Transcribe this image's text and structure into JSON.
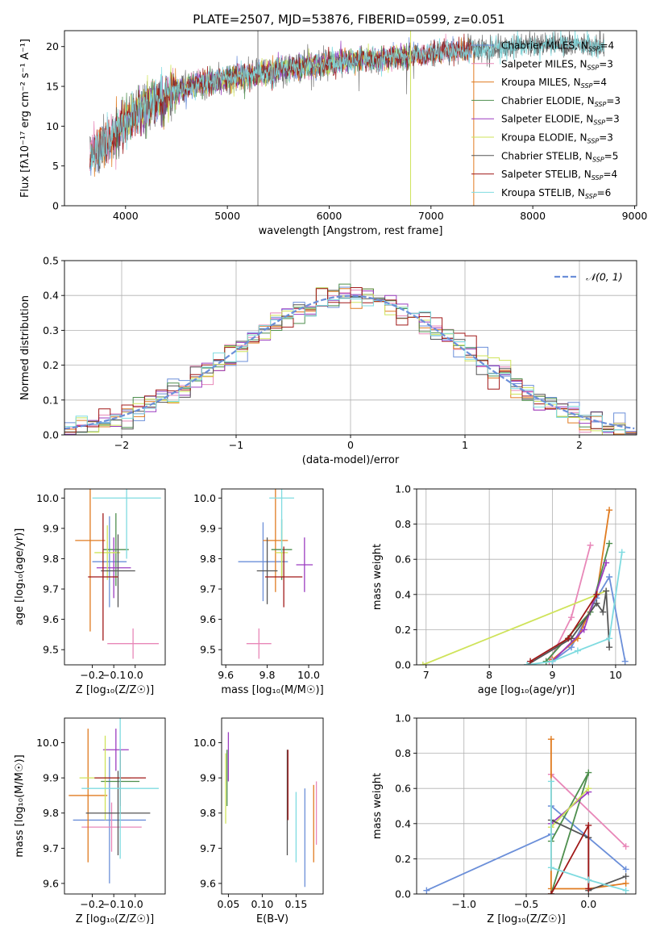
{
  "title": "PLATE=2507, MJD=53876, FIBERID=0599, z=0.051",
  "colors": {
    "Chabrier MILES": "#6b8fd9",
    "Salpeter MILES": "#e887b8",
    "Kroupa MILES": "#e07b20",
    "Chabrier ELODIE": "#4e8f4e",
    "Salpeter ELODIE": "#9b3cc0",
    "Kroupa ELODIE": "#cfe35a",
    "Chabrier STELIB": "#555555",
    "Salpeter STELIB": "#a01818",
    "Kroupa STELIB": "#7fdbe0",
    "gauss": "#6b8fd9"
  },
  "models": [
    "Chabrier MILES",
    "Salpeter MILES",
    "Kroupa MILES",
    "Chabrier ELODIE",
    "Salpeter ELODIE",
    "Kroupa ELODIE",
    "Chabrier STELIB",
    "Salpeter STELIB",
    "Kroupa STELIB"
  ],
  "chart_data": [
    {
      "id": "spectrum",
      "type": "line",
      "xlabel": "wavelength [Angstrom, rest frame]",
      "ylabel": "Flux [fλ10⁻¹⁷ erg cm⁻² s⁻¹ A⁻¹]",
      "xlim": [
        3400,
        9020
      ],
      "ylim": [
        0,
        22
      ],
      "xticks": [
        4000,
        5000,
        6000,
        7000,
        8000,
        9000
      ],
      "yticks": [
        0,
        5,
        10,
        15,
        20
      ],
      "legend_position": "top-right",
      "legend": [
        {
          "model": "Chabrier MILES",
          "label": "Chabrier MILES, N",
          "sub": "SSP",
          "tail": "=4"
        },
        {
          "model": "Salpeter MILES",
          "label": "Salpeter MILES, N",
          "sub": "SSP",
          "tail": "=3"
        },
        {
          "model": "Kroupa MILES",
          "label": "Kroupa MILES, N",
          "sub": "SSP",
          "tail": "=4"
        },
        {
          "model": "Chabrier ELODIE",
          "label": "Chabrier ELODIE, N",
          "sub": "SSP",
          "tail": "=3"
        },
        {
          "model": "Salpeter ELODIE",
          "label": "Salpeter ELODIE, N",
          "sub": "SSP",
          "tail": "=3"
        },
        {
          "model": "Kroupa ELODIE",
          "label": "Kroupa ELODIE, N",
          "sub": "SSP",
          "tail": "=3"
        },
        {
          "model": "Chabrier STELIB",
          "label": "Chabrier STELIB, N",
          "sub": "SSP",
          "tail": "=5"
        },
        {
          "model": "Salpeter STELIB",
          "label": "Salpeter STELIB, N",
          "sub": "SSP",
          "tail": "=4"
        },
        {
          "model": "Kroupa STELIB",
          "label": "Kroupa STELIB, N",
          "sub": "SSP",
          "tail": "=6"
        }
      ],
      "continuum": [
        [
          3650,
          6.5
        ],
        [
          3800,
          7.5
        ],
        [
          3950,
          10
        ],
        [
          4100,
          11.8
        ],
        [
          4300,
          13.2
        ],
        [
          4500,
          14.5
        ],
        [
          4800,
          15.5
        ],
        [
          5100,
          16.2
        ],
        [
          5400,
          16.8
        ],
        [
          5800,
          17.6
        ],
        [
          6200,
          18.2
        ],
        [
          6600,
          18.6
        ],
        [
          7000,
          19.2
        ],
        [
          7400,
          19.6
        ],
        [
          7800,
          20
        ],
        [
          8200,
          20.4
        ],
        [
          8700,
          20
        ]
      ],
      "model_ranges": [
        [
          3650,
          7400
        ],
        [
          3650,
          7400
        ],
        [
          3650,
          7400
        ],
        [
          3900,
          6800
        ],
        [
          3900,
          6800
        ],
        [
          3900,
          6800
        ],
        [
          3650,
          8700
        ],
        [
          3650,
          7400
        ],
        [
          3650,
          8700
        ]
      ],
      "spikes": [
        {
          "x": 5300,
          "y": [
            0,
            22
          ]
        },
        {
          "x": 6800,
          "y": [
            0,
            22
          ]
        }
      ]
    },
    {
      "id": "residuals",
      "type": "histogram",
      "xlabel": "(data-model)/error",
      "ylabel": "Normed distribution",
      "xlim": [
        -2.5,
        2.5
      ],
      "ylim": [
        0,
        0.5
      ],
      "xticks": [
        -2,
        -1,
        0,
        1,
        2
      ],
      "yticks": [
        0,
        0.1,
        0.2,
        0.3,
        0.4,
        0.5
      ],
      "grid": true,
      "bin_width": 0.1,
      "legend_position": "top-right",
      "gauss_label": "𝒩(0, 1)"
    },
    {
      "id": "age-vs-Z",
      "type": "errorbar",
      "xlabel": "Z [log₁₀(Z/Z☉)]",
      "ylabel": "age  [log₁₀(age/yr)]",
      "xlim": [
        -0.33,
        0.14
      ],
      "ylim": [
        9.45,
        10.03
      ],
      "xticks": [
        -0.2,
        -0.1,
        0.0
      ],
      "yticks": [
        9.5,
        9.6,
        9.7,
        9.8,
        9.9,
        10.0
      ],
      "points": [
        {
          "model": "Chabrier MILES",
          "x": -0.12,
          "xerr": 0.08,
          "y": 9.79,
          "yerr": 0.15
        },
        {
          "model": "Salpeter MILES",
          "x": -0.01,
          "xerr": 0.12,
          "y": 9.52,
          "yerr": 0.05
        },
        {
          "model": "Kroupa MILES",
          "x": -0.21,
          "xerr": 0.07,
          "y": 9.86,
          "yerr": 0.3
        },
        {
          "model": "Chabrier ELODIE",
          "x": -0.09,
          "xerr": 0.06,
          "y": 9.83,
          "yerr": 0.12
        },
        {
          "model": "Salpeter ELODIE",
          "x": -0.1,
          "xerr": 0.08,
          "y": 9.77,
          "yerr": 0.1
        },
        {
          "model": "Kroupa ELODIE",
          "x": -0.13,
          "xerr": 0.06,
          "y": 9.82,
          "yerr": 0.09
        },
        {
          "model": "Chabrier STELIB",
          "x": -0.08,
          "xerr": 0.08,
          "y": 9.76,
          "yerr": 0.12
        },
        {
          "model": "Salpeter STELIB",
          "x": -0.15,
          "xerr": 0.07,
          "y": 9.74,
          "yerr": 0.21
        },
        {
          "model": "Kroupa STELIB",
          "x": -0.04,
          "xerr": 0.16,
          "y": 10.0,
          "yerr": 0.2
        }
      ]
    },
    {
      "id": "age-vs-mass",
      "type": "errorbar",
      "xlabel": "mass [log₁₀(M/M☉)]",
      "ylabel": "",
      "xlim": [
        9.58,
        10.07
      ],
      "ylim": [
        9.45,
        10.03
      ],
      "xticks": [
        9.6,
        9.8,
        10.0
      ],
      "yticks": [
        9.5,
        9.6,
        9.7,
        9.8,
        9.9,
        10.0
      ],
      "points": [
        {
          "model": "Chabrier MILES",
          "x": 9.78,
          "xerr": 0.12,
          "y": 9.79,
          "yerr": 0.13
        },
        {
          "model": "Salpeter MILES",
          "x": 9.76,
          "xerr": 0.06,
          "y": 9.52,
          "yerr": 0.05
        },
        {
          "model": "Kroupa MILES",
          "x": 9.84,
          "xerr": 0.06,
          "y": 9.86,
          "yerr": 0.17
        },
        {
          "model": "Chabrier ELODIE",
          "x": 9.87,
          "xerr": 0.05,
          "y": 9.83,
          "yerr": 0.1
        },
        {
          "model": "Salpeter ELODIE",
          "x": 9.98,
          "xerr": 0.04,
          "y": 9.78,
          "yerr": 0.09
        },
        {
          "model": "Kroupa ELODIE",
          "x": 9.87,
          "xerr": 0.03,
          "y": 9.82,
          "yerr": 0.08
        },
        {
          "model": "Chabrier STELIB",
          "x": 9.8,
          "xerr": 0.05,
          "y": 9.76,
          "yerr": 0.11
        },
        {
          "model": "Salpeter STELIB",
          "x": 9.88,
          "xerr": 0.09,
          "y": 9.74,
          "yerr": 0.1
        },
        {
          "model": "Kroupa STELIB",
          "x": 9.87,
          "xerr": 0.06,
          "y": 10.0,
          "yerr": 0.18
        }
      ]
    },
    {
      "id": "weight-vs-age",
      "type": "line",
      "xlabel": "age  [log₁₀(age/yr)]",
      "ylabel": "mass weight",
      "xlim": [
        6.85,
        10.32
      ],
      "ylim": [
        0,
        1
      ],
      "xticks": [
        7,
        8,
        9,
        10
      ],
      "yticks": [
        0,
        0.2,
        0.4,
        0.6,
        0.8,
        1.0
      ],
      "grid": true,
      "series": [
        {
          "model": "Chabrier MILES",
          "x": [
            9.0,
            9.3,
            9.7,
            9.9,
            10.15
          ],
          "y": [
            0.02,
            0.1,
            0.38,
            0.5,
            0.02
          ]
        },
        {
          "model": "Salpeter MILES",
          "x": [
            8.95,
            9.3,
            9.6
          ],
          "y": [
            0.02,
            0.27,
            0.68
          ]
        },
        {
          "model": "Kroupa MILES",
          "x": [
            9.0,
            9.4,
            9.7,
            9.9
          ],
          "y": [
            0.03,
            0.15,
            0.4,
            0.88
          ]
        },
        {
          "model": "Chabrier ELODIE",
          "x": [
            8.9,
            9.6,
            9.9
          ],
          "y": [
            0.02,
            0.3,
            0.69
          ]
        },
        {
          "model": "Salpeter ELODIE",
          "x": [
            9.0,
            9.5,
            9.85
          ],
          "y": [
            0.02,
            0.2,
            0.58
          ]
        },
        {
          "model": "Kroupa ELODIE",
          "x": [
            6.95,
            9.85
          ],
          "y": [
            0.0,
            0.42
          ]
        },
        {
          "model": "Chabrier STELIB",
          "x": [
            8.6,
            9.3,
            9.7,
            9.8,
            9.85,
            9.9
          ],
          "y": [
            0.0,
            0.15,
            0.35,
            0.3,
            0.42,
            0.1
          ]
        },
        {
          "model": "Salpeter STELIB",
          "x": [
            8.65,
            9.25,
            9.7
          ],
          "y": [
            0.02,
            0.15,
            0.4
          ]
        },
        {
          "model": "Kroupa STELIB",
          "x": [
            8.6,
            9.0,
            9.4,
            9.9,
            10.1
          ],
          "y": [
            0.0,
            0.02,
            0.08,
            0.15,
            0.64
          ]
        }
      ]
    },
    {
      "id": "mass-vs-Z",
      "type": "errorbar",
      "xlabel": "Z [log₁₀(Z/Z☉)]",
      "ylabel": "mass [log₁₀(M/M☉)]",
      "xlim": [
        -0.33,
        0.14
      ],
      "ylim": [
        9.57,
        10.07
      ],
      "xticks": [
        -0.2,
        -0.1,
        0.0
      ],
      "yticks": [
        9.6,
        9.7,
        9.8,
        9.9,
        10.0
      ],
      "points": [
        {
          "model": "Chabrier MILES",
          "x": -0.12,
          "xerr": 0.17,
          "y": 9.78,
          "yerr": 0.18
        },
        {
          "model": "Salpeter MILES",
          "x": -0.11,
          "xerr": 0.14,
          "y": 9.76,
          "yerr": 0.07
        },
        {
          "model": "Kroupa MILES",
          "x": -0.22,
          "xerr": 0.09,
          "y": 9.85,
          "yerr": 0.19
        },
        {
          "model": "Chabrier ELODIE",
          "x": -0.07,
          "xerr": 0.09,
          "y": 9.89,
          "yerr": 0.09
        },
        {
          "model": "Salpeter ELODIE",
          "x": -0.09,
          "xerr": 0.06,
          "y": 9.98,
          "yerr": 0.06
        },
        {
          "model": "Kroupa ELODIE",
          "x": -0.14,
          "xerr": 0.12,
          "y": 9.9,
          "yerr": 0.12
        },
        {
          "model": "Chabrier STELIB",
          "x": -0.08,
          "xerr": 0.15,
          "y": 9.8,
          "yerr": 0.12
        },
        {
          "model": "Salpeter STELIB",
          "x": -0.07,
          "xerr": 0.12,
          "y": 9.9,
          "yerr": 0.08
        },
        {
          "model": "Kroupa STELIB",
          "x": -0.07,
          "xerr": 0.18,
          "y": 9.87,
          "yerr": 0.2
        }
      ]
    },
    {
      "id": "mass-vs-ebv",
      "type": "errorbar",
      "xlabel": "E(B-V)",
      "ylabel": "",
      "xlim": [
        0.04,
        0.19
      ],
      "ylim": [
        9.57,
        10.07
      ],
      "xticks": [
        0.05,
        0.1,
        0.15
      ],
      "yticks": [
        9.6,
        9.7,
        9.8,
        9.9,
        10.0
      ],
      "points": [
        {
          "model": "Chabrier MILES",
          "x": 0.163,
          "xerr": 0,
          "y": 9.73,
          "yerr": 0.14
        },
        {
          "model": "Salpeter MILES",
          "x": 0.18,
          "xerr": 0,
          "y": 9.8,
          "yerr": 0.09
        },
        {
          "model": "Kroupa MILES",
          "x": 0.176,
          "xerr": 0,
          "y": 9.77,
          "yerr": 0.11
        },
        {
          "model": "Chabrier ELODIE",
          "x": 0.048,
          "xerr": 0,
          "y": 9.9,
          "yerr": 0.08
        },
        {
          "model": "Salpeter ELODIE",
          "x": 0.05,
          "xerr": 0,
          "y": 9.96,
          "yerr": 0.07
        },
        {
          "model": "Kroupa ELODIE",
          "x": 0.046,
          "xerr": 0,
          "y": 9.87,
          "yerr": 0.1
        },
        {
          "model": "Chabrier STELIB",
          "x": 0.137,
          "xerr": 0,
          "y": 9.83,
          "yerr": 0.15
        },
        {
          "model": "Salpeter STELIB",
          "x": 0.138,
          "xerr": 0,
          "y": 9.88,
          "yerr": 0.1
        },
        {
          "model": "Kroupa STELIB",
          "x": 0.15,
          "xerr": 0,
          "y": 9.76,
          "yerr": 0.1
        }
      ]
    },
    {
      "id": "weight-vs-Z",
      "type": "line",
      "xlabel": "Z [log₁₀(Z/Z☉)]",
      "ylabel": "mass weight",
      "xlim": [
        -1.38,
        0.38
      ],
      "ylim": [
        0,
        1
      ],
      "xticks": [
        -1.0,
        -0.5,
        0.0
      ],
      "yticks": [
        0,
        0.2,
        0.4,
        0.6,
        0.8,
        1.0
      ],
      "grid": true,
      "series": [
        {
          "model": "Chabrier MILES",
          "x": [
            -1.3,
            -0.3,
            -0.3,
            0.3
          ],
          "y": [
            0.02,
            0.34,
            0.5,
            0.14
          ]
        },
        {
          "model": "Salpeter MILES",
          "x": [
            -0.3,
            0.3
          ],
          "y": [
            0.68,
            0.27
          ]
        },
        {
          "model": "Kroupa MILES",
          "x": [
            -0.3,
            -0.3,
            0.0,
            0.3
          ],
          "y": [
            0.88,
            0.03,
            0.03,
            0.06
          ]
        },
        {
          "model": "Chabrier ELODIE",
          "x": [
            -0.3,
            0.0,
            -0.3
          ],
          "y": [
            0.0,
            0.69,
            0.3
          ]
        },
        {
          "model": "Salpeter ELODIE",
          "x": [
            -0.3,
            0.0
          ],
          "y": [
            0.4,
            0.58
          ]
        },
        {
          "model": "Kroupa ELODIE",
          "x": [
            -0.3,
            0.0
          ],
          "y": [
            0.38,
            0.6
          ]
        },
        {
          "model": "Chabrier STELIB",
          "x": [
            -0.3,
            0.0,
            0.0,
            0.3
          ],
          "y": [
            0.42,
            0.32,
            0.02,
            0.1
          ]
        },
        {
          "model": "Salpeter STELIB",
          "x": [
            -0.3,
            0.0,
            0.0
          ],
          "y": [
            0.0,
            0.39,
            0.03
          ]
        },
        {
          "model": "Kroupa STELIB",
          "x": [
            -0.3,
            -0.3,
            0.0,
            0.3
          ],
          "y": [
            0.64,
            0.15,
            0.08,
            0.02
          ]
        }
      ]
    }
  ]
}
